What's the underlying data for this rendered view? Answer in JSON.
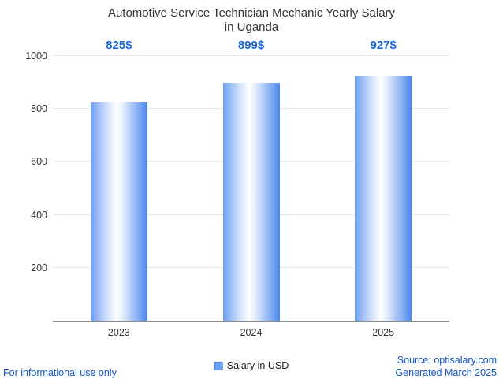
{
  "title": {
    "line1": "Automotive Service Technician Mechanic Yearly Salary",
    "line2": "in Uganda"
  },
  "chart_data": {
    "type": "bar",
    "categories": [
      "2023",
      "2024",
      "2025"
    ],
    "values": [
      825,
      899,
      927
    ],
    "value_labels": [
      "825$",
      "899$",
      "927$"
    ],
    "series": [
      {
        "name": "Salary in USD",
        "values": [
          825,
          899,
          927
        ]
      }
    ],
    "title": "Automotive Service Technician Mechanic Yearly Salary in Uganda",
    "xlabel": "",
    "ylabel": "",
    "ylim": [
      0,
      1000
    ],
    "yticks": [
      200,
      400,
      600,
      800,
      1000
    ],
    "grid": "horizontal",
    "legend": {
      "label": "Salary in USD",
      "position": "bottom-center"
    }
  },
  "footer": {
    "left": "For informational use only",
    "source": "Source: optisalary.com",
    "generated": "Generated March 2025"
  },
  "colors": {
    "title": "#333333",
    "value_label": "#1a66d6",
    "footer_text": "#1155cc",
    "bar_edge_left": "#6d9ef2",
    "bar_center": "#ffffff",
    "bar_edge_right": "#4b86ee"
  }
}
